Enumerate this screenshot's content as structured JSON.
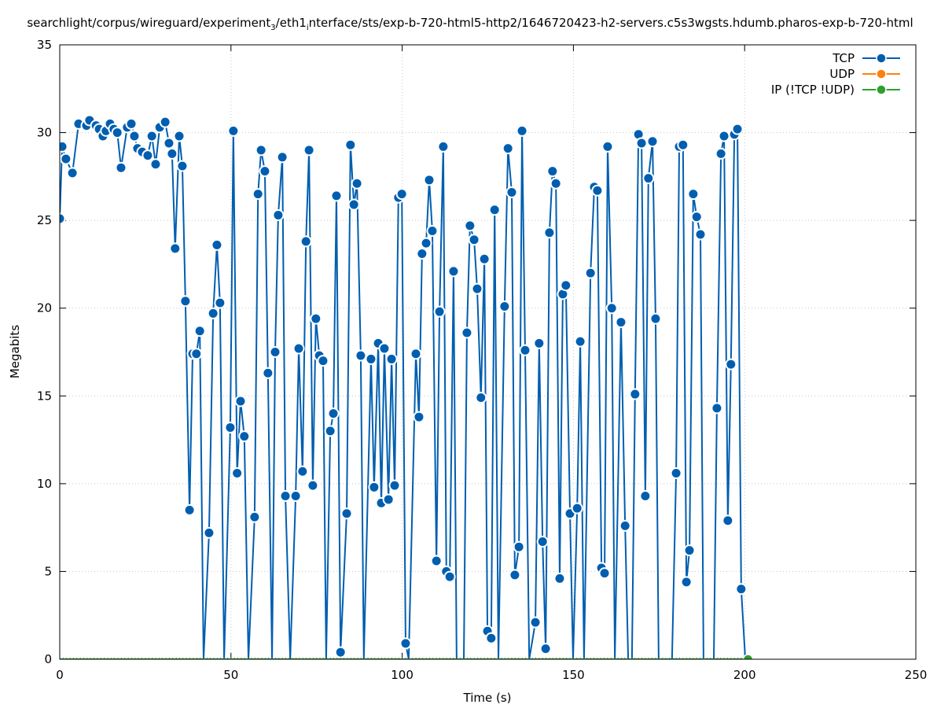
{
  "chart_data": {
    "type": "line",
    "title": "searchlight/corpus/wireguard/experiment_3/eth1_interface/sts/exp-b-720-html5-http2/1646720423-h2-servers.c5s3wgsts.hdumb.pharos-exp-b-720-html",
    "title_parts": {
      "a": "searchlight/corpus/wireguard/experiment",
      "sub1": "3",
      "b": "/eth1",
      "sub2": "i",
      "c": "nterface/sts/exp-b-720-html5-http2/1646720423-h2-servers.c5s3wgsts.hdumb.pharos-exp-b-720-html"
    },
    "xlabel": "Time (s)",
    "ylabel": "Megabits",
    "xlim": [
      0,
      250
    ],
    "ylim": [
      0,
      35
    ],
    "xticks": [
      "0",
      "50",
      "100",
      "150",
      "200",
      "250"
    ],
    "yticks": [
      "0",
      "5",
      "10",
      "15",
      "20",
      "25",
      "30",
      "35"
    ],
    "grid": true,
    "legend_position": "top-right",
    "series": [
      {
        "name": "TCP",
        "color": "#005eb0",
        "points": [
          [
            0,
            25.1
          ],
          [
            0.7,
            29.2
          ],
          [
            1.8,
            28.5
          ],
          [
            3.7,
            27.7
          ],
          [
            5.5,
            30.5
          ],
          [
            7.8,
            30.4
          ],
          [
            8.7,
            30.7
          ],
          [
            10.6,
            30.4
          ],
          [
            11.5,
            30.2
          ],
          [
            12.6,
            29.8
          ],
          [
            13.5,
            30.1
          ],
          [
            14.7,
            30.5
          ],
          [
            15.8,
            30.2
          ],
          [
            16.8,
            30.0
          ],
          [
            17.9,
            28.0
          ],
          [
            19.7,
            30.3
          ],
          [
            20.9,
            30.5
          ],
          [
            21.8,
            29.8
          ],
          [
            22.7,
            29.1
          ],
          [
            24.1,
            28.9
          ],
          [
            25.7,
            28.7
          ],
          [
            26.9,
            29.8
          ],
          [
            28.0,
            28.2
          ],
          [
            29.2,
            30.3
          ],
          [
            30.8,
            30.6
          ],
          [
            31.9,
            29.4
          ],
          [
            32.8,
            28.8
          ],
          [
            33.7,
            23.4
          ],
          [
            34.9,
            29.8
          ],
          [
            35.8,
            28.1
          ],
          [
            36.7,
            20.4
          ],
          [
            37.9,
            8.5
          ],
          [
            38.8,
            17.4
          ],
          [
            39.9,
            17.4
          ],
          [
            40.9,
            18.7
          ],
          [
            42.0,
            0
          ],
          [
            43.6,
            7.2
          ],
          [
            44.8,
            19.7
          ],
          [
            45.9,
            23.6
          ],
          [
            46.8,
            20.3
          ],
          [
            48.0,
            0
          ],
          [
            49.8,
            13.2
          ],
          [
            50.7,
            30.1
          ],
          [
            51.8,
            10.6
          ],
          [
            52.8,
            14.7
          ],
          [
            53.9,
            12.7
          ],
          [
            55.1,
            0
          ],
          [
            56.9,
            8.1
          ],
          [
            57.9,
            26.5
          ],
          [
            58.8,
            29.0
          ],
          [
            59.9,
            27.8
          ],
          [
            60.8,
            16.3
          ],
          [
            62.0,
            0
          ],
          [
            62.9,
            17.5
          ],
          [
            63.8,
            25.3
          ],
          [
            65.0,
            28.6
          ],
          [
            65.9,
            9.3
          ],
          [
            67.3,
            0
          ],
          [
            68.9,
            9.3
          ],
          [
            69.8,
            17.7
          ],
          [
            70.9,
            10.7
          ],
          [
            71.9,
            23.8
          ],
          [
            72.8,
            29.0
          ],
          [
            73.9,
            9.9
          ],
          [
            74.8,
            19.4
          ],
          [
            75.8,
            17.3
          ],
          [
            76.9,
            17.0
          ],
          [
            77.8,
            0
          ],
          [
            79.0,
            13.0
          ],
          [
            79.9,
            14.0
          ],
          [
            80.8,
            26.4
          ],
          [
            82.0,
            0.4
          ],
          [
            83.8,
            8.3
          ],
          [
            84.9,
            29.3
          ],
          [
            85.9,
            25.9
          ],
          [
            86.8,
            27.1
          ],
          [
            87.9,
            17.3
          ],
          [
            88.8,
            0
          ],
          [
            90.9,
            17.1
          ],
          [
            91.8,
            9.8
          ],
          [
            93.0,
            18.0
          ],
          [
            93.9,
            8.9
          ],
          [
            94.8,
            17.7
          ],
          [
            96.0,
            9.1
          ],
          [
            96.9,
            17.1
          ],
          [
            97.8,
            9.9
          ],
          [
            98.9,
            26.3
          ],
          [
            99.9,
            26.5
          ],
          [
            101.0,
            0.9
          ],
          [
            101.9,
            0
          ],
          [
            104.0,
            17.4
          ],
          [
            104.9,
            13.8
          ],
          [
            105.8,
            23.1
          ],
          [
            107.0,
            23.7
          ],
          [
            107.9,
            27.3
          ],
          [
            108.8,
            24.4
          ],
          [
            110.0,
            5.6
          ],
          [
            110.9,
            19.8
          ],
          [
            112.0,
            29.2
          ],
          [
            112.9,
            5.0
          ],
          [
            113.9,
            4.7
          ],
          [
            115.0,
            22.1
          ],
          [
            115.9,
            0
          ],
          [
            118.0,
            0
          ],
          [
            118.9,
            18.6
          ],
          [
            119.8,
            24.7
          ],
          [
            121.0,
            23.9
          ],
          [
            121.9,
            21.1
          ],
          [
            123.0,
            14.9
          ],
          [
            124.0,
            22.8
          ],
          [
            124.9,
            1.6
          ],
          [
            126.0,
            1.2
          ],
          [
            127.0,
            25.6
          ],
          [
            128.1,
            0
          ],
          [
            129.9,
            20.1
          ],
          [
            130.9,
            29.1
          ],
          [
            132.0,
            26.6
          ],
          [
            132.9,
            4.8
          ],
          [
            134.1,
            6.4
          ],
          [
            135.0,
            30.1
          ],
          [
            135.9,
            17.6
          ],
          [
            137.1,
            0
          ],
          [
            138.9,
            2.1
          ],
          [
            140.0,
            18.0
          ],
          [
            141.0,
            6.7
          ],
          [
            141.9,
            0.6
          ],
          [
            143.0,
            24.3
          ],
          [
            143.9,
            27.8
          ],
          [
            144.9,
            27.1
          ],
          [
            146.0,
            4.6
          ],
          [
            146.9,
            20.8
          ],
          [
            147.8,
            21.3
          ],
          [
            149.0,
            8.3
          ],
          [
            149.9,
            0
          ],
          [
            151.1,
            8.6
          ],
          [
            152.0,
            18.1
          ],
          [
            153.1,
            0
          ],
          [
            155.0,
            22.0
          ],
          [
            156.1,
            26.9
          ],
          [
            157.0,
            26.7
          ],
          [
            158.2,
            5.2
          ],
          [
            159.1,
            4.9
          ],
          [
            160.0,
            29.2
          ],
          [
            161.2,
            20.0
          ],
          [
            162.1,
            0
          ],
          [
            163.9,
            19.2
          ],
          [
            165.1,
            7.6
          ],
          [
            166.0,
            0
          ],
          [
            167.1,
            0
          ],
          [
            168.0,
            15.1
          ],
          [
            169.0,
            29.9
          ],
          [
            169.9,
            29.4
          ],
          [
            171.0,
            9.3
          ],
          [
            171.9,
            27.4
          ],
          [
            173.1,
            29.5
          ],
          [
            174.0,
            19.4
          ],
          [
            174.9,
            0
          ],
          [
            178.8,
            0
          ],
          [
            180.0,
            10.6
          ],
          [
            180.9,
            29.2
          ],
          [
            182.0,
            29.3
          ],
          [
            183.0,
            4.4
          ],
          [
            183.9,
            6.2
          ],
          [
            185.0,
            26.5
          ],
          [
            186.0,
            25.2
          ],
          [
            187.1,
            24.2
          ],
          [
            188.0,
            0
          ],
          [
            191.0,
            0
          ],
          [
            191.9,
            14.3
          ],
          [
            193.1,
            28.8
          ],
          [
            194.0,
            29.8
          ],
          [
            195.1,
            7.9
          ],
          [
            196.0,
            16.8
          ],
          [
            197.0,
            29.9
          ],
          [
            197.9,
            30.2
          ],
          [
            199.0,
            4.0
          ],
          [
            200.2,
            0
          ]
        ]
      },
      {
        "name": "UDP",
        "color": "#ff7f0e",
        "points": []
      },
      {
        "name": "IP (!TCP  !UDP)",
        "color": "#2ca02c",
        "points": [
          [
            0,
            0
          ],
          [
            201.0,
            0
          ]
        ]
      }
    ]
  }
}
